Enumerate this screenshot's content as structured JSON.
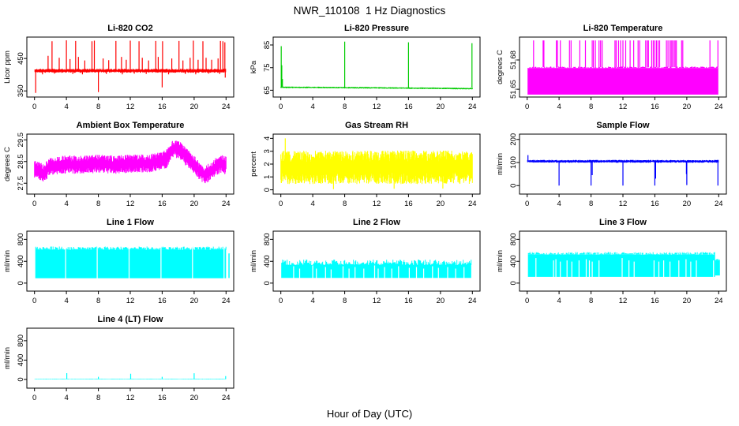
{
  "figure": {
    "title": "NWR_110108  1 Hz Diagnostics",
    "xlabel": "Hour of Day (UTC)"
  },
  "chart_data": [
    {
      "type": "line",
      "title": "Li-820 CO2",
      "ylabel": "Licor ppm",
      "color": "#FF0000",
      "xlim": [
        -0.96,
        24.96
      ],
      "ylim": [
        331,
        516
      ],
      "xticks": [
        0,
        4,
        8,
        12,
        16,
        20,
        24
      ],
      "yticks": [
        350,
        450
      ],
      "flat": {
        "value": 412,
        "noise": 6,
        "x0": 0.05,
        "x1": 23.95
      },
      "spikes": [
        [
          1.7,
          458
        ],
        [
          2.2,
          503
        ],
        [
          3.1,
          452
        ],
        [
          4.0,
          506
        ],
        [
          4.45,
          448
        ],
        [
          5.15,
          504
        ],
        [
          5.5,
          455
        ],
        [
          6.3,
          444
        ],
        [
          7.2,
          503
        ],
        [
          7.5,
          505
        ],
        [
          8.6,
          450
        ],
        [
          9.3,
          445
        ],
        [
          10.2,
          504
        ],
        [
          10.9,
          455
        ],
        [
          11.5,
          446
        ],
        [
          12.0,
          505
        ],
        [
          13.1,
          503
        ],
        [
          13.5,
          452
        ],
        [
          14.3,
          444
        ],
        [
          15.2,
          504
        ],
        [
          15.5,
          455
        ],
        [
          16.05,
          503
        ],
        [
          17.2,
          450
        ],
        [
          18.1,
          504
        ],
        [
          18.6,
          444
        ],
        [
          19.5,
          452
        ],
        [
          19.9,
          505
        ],
        [
          20.5,
          446
        ],
        [
          21.1,
          503
        ],
        [
          21.5,
          452
        ],
        [
          22.2,
          446
        ],
        [
          23.0,
          450
        ],
        [
          23.3,
          504
        ],
        [
          23.6,
          503
        ],
        [
          23.85,
          500
        ]
      ],
      "down_spikes": [
        [
          0.15,
          344
        ],
        [
          1.0,
          401
        ],
        [
          2.5,
          403
        ],
        [
          4.8,
          402
        ],
        [
          6.0,
          401
        ],
        [
          8.0,
          346
        ],
        [
          9.0,
          402
        ],
        [
          11.0,
          401
        ],
        [
          12.5,
          403
        ],
        [
          14.0,
          402
        ],
        [
          16.0,
          361
        ],
        [
          16.8,
          401
        ],
        [
          18.9,
          402
        ],
        [
          20.2,
          401
        ],
        [
          21.8,
          403
        ],
        [
          23.2,
          402
        ],
        [
          23.9,
          391
        ]
      ]
    },
    {
      "type": "line",
      "title": "Li-820 Pressure",
      "ylabel": "kPa",
      "color": "#00CC00",
      "xlim": [
        -0.96,
        24.96
      ],
      "ylim": [
        62,
        88.5
      ],
      "xticks": [
        0,
        4,
        8,
        12,
        16,
        20,
        24
      ],
      "yticks": [
        65,
        75,
        85
      ],
      "envelope": {
        "x": [
          0,
          6,
          12,
          18,
          24
        ],
        "mean": [
          66.3,
          66.2,
          66.05,
          65.9,
          65.7
        ],
        "half": 0.35,
        "n": 520
      },
      "spike_base": 66.2,
      "spikes": [
        [
          0.05,
          84.5
        ],
        [
          0.12,
          76
        ],
        [
          0.2,
          70
        ],
        [
          8.0,
          86.5
        ],
        [
          16.0,
          86.2
        ],
        [
          23.95,
          85.8
        ]
      ]
    },
    {
      "type": "line",
      "title": "Li-820 Temperature",
      "ylabel": "degrees C",
      "color": "#FF00FF",
      "xlim": [
        -0.96,
        24.96
      ],
      "ylim": [
        51.642,
        51.7035
      ],
      "xticks": [
        0,
        4,
        8,
        12,
        16,
        20,
        24
      ],
      "yticks": [
        51.65,
        51.68
      ],
      "solid": [
        {
          "x0": 0.05,
          "x1": 23.95,
          "lo": 51.6445,
          "hi": 51.6725,
          "tn": 0.0008
        }
      ],
      "spike_base": "hi",
      "spike_v_default": 51.7,
      "spikes": [
        [
          0.8
        ],
        [
          2.0
        ],
        [
          2.1
        ],
        [
          3.65
        ],
        [
          3.8
        ],
        [
          4.15
        ],
        [
          5.3
        ],
        [
          5.5
        ],
        [
          6.6
        ],
        [
          7.3
        ],
        [
          8.15
        ],
        [
          8.3
        ],
        [
          8.55
        ],
        [
          9.0
        ],
        [
          9.2
        ],
        [
          9.4
        ],
        [
          11.0
        ],
        [
          11.15
        ],
        [
          11.45
        ],
        [
          11.7
        ],
        [
          12.0
        ],
        [
          12.35
        ],
        [
          12.9
        ],
        [
          13.35
        ],
        [
          13.9
        ],
        [
          14.1
        ],
        [
          14.85
        ],
        [
          15.05
        ],
        [
          15.2
        ],
        [
          15.6
        ],
        [
          15.8
        ],
        [
          16.0
        ],
        [
          16.2
        ],
        [
          16.4
        ],
        [
          16.6
        ],
        [
          17.45
        ],
        [
          17.65
        ],
        [
          17.9
        ],
        [
          18.05
        ],
        [
          18.2
        ],
        [
          18.4
        ],
        [
          18.55
        ],
        [
          18.7
        ],
        [
          19.35
        ],
        [
          19.5
        ],
        [
          22.9
        ],
        [
          23.9
        ]
      ]
    },
    {
      "type": "line",
      "title": "Ambient Box Temperature",
      "ylabel": "degrees C",
      "color": "#FF00FF",
      "xlim": [
        -0.96,
        24.96
      ],
      "ylim": [
        27.0,
        29.76
      ],
      "xticks": [
        0,
        4,
        8,
        12,
        16,
        20,
        24
      ],
      "yticks": [
        27.5,
        28.5,
        29.5
      ],
      "envelope": {
        "x": [
          0,
          0.5,
          1.2,
          2,
          4,
          6,
          8,
          10,
          12,
          14,
          15.5,
          16.5,
          17.3,
          18.2,
          19,
          20,
          21,
          21.5,
          22.5,
          23.5,
          24
        ],
        "mean": [
          28.15,
          28.1,
          27.95,
          28.3,
          28.35,
          28.35,
          28.4,
          28.35,
          28.4,
          28.4,
          28.5,
          28.6,
          29.1,
          29.05,
          28.7,
          28.35,
          27.95,
          27.9,
          28.2,
          28.4,
          28.3
        ],
        "half": 0.42,
        "n": 600
      }
    },
    {
      "type": "line",
      "title": "Gas Stream RH",
      "ylabel": "percent",
      "color": "#FFFF00",
      "xlim": [
        -0.96,
        24.96
      ],
      "ylim": [
        -0.33,
        4.33
      ],
      "xticks": [
        0,
        4,
        8,
        12,
        16,
        20,
        24
      ],
      "yticks": [
        0,
        1,
        2,
        3,
        4
      ],
      "envelope": {
        "x": [
          0,
          24
        ],
        "mean": [
          1.75,
          1.75
        ],
        "half": 1.3,
        "n": 620
      },
      "spike_base": 1.75,
      "spikes": [
        [
          0.55,
          4.0
        ]
      ],
      "down_spikes": [
        [
          6.6,
          0.05
        ],
        [
          14.2,
          0.08
        ],
        [
          20.3,
          0.1
        ]
      ]
    },
    {
      "type": "line",
      "title": "Sample Flow",
      "ylabel": "ml/min",
      "color": "#0000FF",
      "xlim": [
        -0.96,
        24.96
      ],
      "ylim": [
        -37,
        223
      ],
      "xticks": [
        0,
        4,
        8,
        12,
        16,
        20,
        24
      ],
      "yticks": [
        0,
        100,
        200
      ],
      "flat": {
        "value": 105,
        "noise": 6,
        "x0": 0.05,
        "x1": 23.95
      },
      "spikes": [
        [
          0.1,
          132
        ]
      ],
      "down_spikes": [
        [
          4.0,
          0
        ],
        [
          8.0,
          0
        ],
        [
          8.15,
          45
        ],
        [
          12.0,
          0
        ],
        [
          16.0,
          0
        ],
        [
          16.1,
          30
        ],
        [
          19.95,
          50
        ],
        [
          20.0,
          2
        ],
        [
          23.9,
          0
        ]
      ]
    },
    {
      "type": "line",
      "title": "Line 1 Flow",
      "ylabel": "ml/min",
      "color": "#00FFFF",
      "xlim": [
        -0.96,
        24.96
      ],
      "ylim": [
        -145,
        950
      ],
      "xticks": [
        0,
        4,
        8,
        12,
        16,
        20,
        24
      ],
      "yticks": [
        0,
        400,
        800
      ],
      "solid": [
        {
          "x0": 0.1,
          "x1": 24.0,
          "lo": 90,
          "hi": 640,
          "tn": 30
        },
        {
          "x0": 24.3,
          "x1": 24.45,
          "lo": 95,
          "hi": 545,
          "tn": 5
        }
      ],
      "gap_frac": 1.05,
      "gap_w": 0.09,
      "gaps": [
        [
          3.9
        ],
        [
          7.85
        ],
        [
          11.85
        ],
        [
          15.85
        ],
        [
          19.8
        ],
        [
          23.75
        ]
      ]
    },
    {
      "type": "line",
      "title": "Line 2 Flow",
      "ylabel": "ml/min",
      "color": "#00FFFF",
      "xlim": [
        -0.96,
        24.96
      ],
      "ylim": [
        -145,
        950
      ],
      "xticks": [
        0,
        4,
        8,
        12,
        16,
        20,
        24
      ],
      "yticks": [
        0,
        400,
        800
      ],
      "solid": [
        {
          "x0": 0.05,
          "x1": 23.85,
          "lo": 95,
          "hi": 380,
          "tn": 50
        }
      ],
      "gap_w": 0.07,
      "gaps": [
        [
          1.6,
          0.75
        ],
        [
          2.35,
          0.6
        ],
        [
          4.0,
          0.8
        ],
        [
          4.45,
          0.6
        ],
        [
          5.6,
          0.7
        ],
        [
          6.3,
          0.55
        ],
        [
          7.8,
          0.75
        ],
        [
          8.55,
          0.6
        ],
        [
          9.3,
          0.7
        ],
        [
          10.4,
          0.6
        ],
        [
          11.75,
          0.8
        ],
        [
          12.2,
          0.6
        ],
        [
          13.0,
          0.7
        ],
        [
          13.9,
          0.6
        ],
        [
          14.75,
          0.75
        ],
        [
          16.1,
          0.65
        ],
        [
          17.0,
          0.7
        ],
        [
          17.9,
          0.6
        ],
        [
          19.0,
          0.75
        ],
        [
          19.75,
          0.65
        ],
        [
          20.9,
          0.7
        ],
        [
          21.9,
          0.6
        ],
        [
          22.95,
          0.7
        ]
      ]
    },
    {
      "type": "line",
      "title": "Line 3 Flow",
      "ylabel": "ml/min",
      "color": "#00FFFF",
      "xlim": [
        -0.96,
        24.96
      ],
      "ylim": [
        -145,
        950
      ],
      "xticks": [
        0,
        4,
        8,
        12,
        16,
        20,
        24
      ],
      "yticks": [
        0,
        400,
        800
      ],
      "solid": [
        {
          "x0": 0.1,
          "x1": 23.55,
          "lo": 115,
          "hi": 545,
          "tn": 25
        },
        {
          "x0": 23.55,
          "x1": 24.15,
          "lo": 140,
          "hi": 430,
          "tn": 15
        }
      ],
      "gap_w": 0.07,
      "gaps": [
        [
          1.1,
          0.8
        ],
        [
          3.3,
          0.7
        ],
        [
          3.6,
          0.75
        ],
        [
          4.15,
          0.65
        ],
        [
          5.0,
          0.7
        ],
        [
          5.6,
          0.65
        ],
        [
          6.5,
          0.7
        ],
        [
          7.4,
          0.75
        ],
        [
          7.8,
          0.7
        ],
        [
          8.15,
          0.65
        ],
        [
          9.0,
          0.7
        ],
        [
          11.9,
          0.8
        ],
        [
          12.75,
          0.7
        ],
        [
          13.4,
          0.65
        ],
        [
          15.9,
          0.7
        ],
        [
          16.5,
          0.65
        ],
        [
          17.1,
          0.7
        ],
        [
          17.9,
          0.65
        ],
        [
          19.0,
          0.7
        ],
        [
          19.9,
          0.75
        ],
        [
          20.5,
          0.65
        ],
        [
          21.2,
          0.7
        ],
        [
          23.35,
          0.7
        ]
      ]
    },
    {
      "type": "line",
      "title": "Line 4 (LT) Flow",
      "ylabel": "ml/min",
      "color": "#00FFFF",
      "xlim": [
        -0.96,
        24.96
      ],
      "ylim": [
        -180,
        1060
      ],
      "xticks": [
        0,
        4,
        8,
        12,
        16,
        20,
        24
      ],
      "yticks": [
        0,
        400,
        800
      ],
      "flat": {
        "value": 8,
        "noise": 7,
        "x0": 0.05,
        "x1": 23.95
      },
      "spike_base": 8,
      "spikes": [
        [
          4.05,
          130
        ],
        [
          8.0,
          55
        ],
        [
          12.05,
          118
        ],
        [
          16.0,
          55
        ],
        [
          20.0,
          128
        ],
        [
          23.95,
          68
        ]
      ]
    }
  ]
}
